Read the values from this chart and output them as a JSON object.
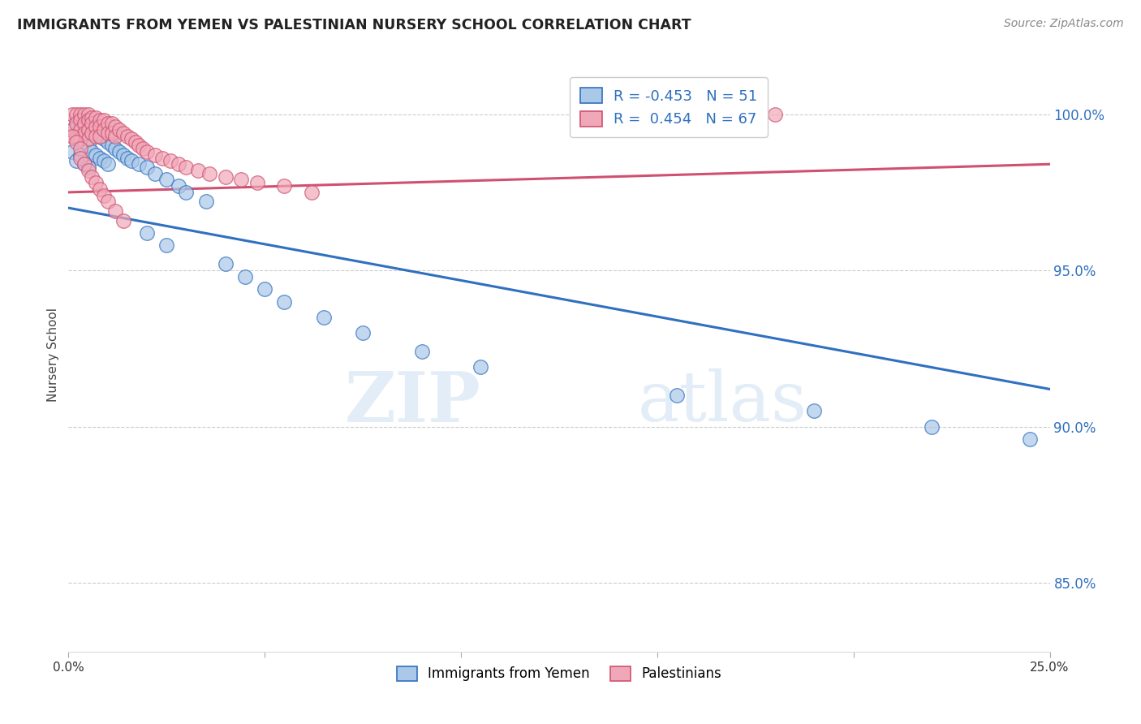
{
  "title": "IMMIGRANTS FROM YEMEN VS PALESTINIAN NURSERY SCHOOL CORRELATION CHART",
  "source": "Source: ZipAtlas.com",
  "ylabel": "Nursery School",
  "ytick_labels": [
    "85.0%",
    "90.0%",
    "95.0%",
    "100.0%"
  ],
  "ytick_values": [
    0.85,
    0.9,
    0.95,
    1.0
  ],
  "xmin": 0.0,
  "xmax": 0.25,
  "ymin": 0.828,
  "ymax": 1.018,
  "legend_blue_r": "-0.453",
  "legend_blue_n": "51",
  "legend_pink_r": "0.454",
  "legend_pink_n": "67",
  "blue_color": "#aac8e8",
  "pink_color": "#f0a8b8",
  "blue_line_color": "#3070c0",
  "pink_line_color": "#d05070",
  "watermark_zip": "ZIP",
  "watermark_atlas": "atlas",
  "blue_line_x0": 0.0,
  "blue_line_x1": 0.25,
  "blue_line_y0": 0.97,
  "blue_line_y1": 0.912,
  "pink_line_x0": 0.0,
  "pink_line_x1": 0.25,
  "pink_line_y0": 0.975,
  "pink_line_y1": 0.984,
  "blue_scatter_x": [
    0.001,
    0.001,
    0.002,
    0.002,
    0.002,
    0.003,
    0.003,
    0.003,
    0.004,
    0.004,
    0.004,
    0.005,
    0.005,
    0.005,
    0.006,
    0.006,
    0.007,
    0.007,
    0.008,
    0.008,
    0.009,
    0.009,
    0.01,
    0.01,
    0.011,
    0.012,
    0.013,
    0.014,
    0.015,
    0.016,
    0.018,
    0.02,
    0.022,
    0.025,
    0.028,
    0.03,
    0.035,
    0.02,
    0.025,
    0.04,
    0.045,
    0.05,
    0.055,
    0.065,
    0.075,
    0.09,
    0.105,
    0.155,
    0.19,
    0.22,
    0.245
  ],
  "blue_scatter_y": [
    0.995,
    0.988,
    0.998,
    0.992,
    0.985,
    0.999,
    0.994,
    0.987,
    0.997,
    0.991,
    0.984,
    0.996,
    0.99,
    0.983,
    0.995,
    0.988,
    0.994,
    0.987,
    0.993,
    0.986,
    0.992,
    0.985,
    0.991,
    0.984,
    0.99,
    0.989,
    0.988,
    0.987,
    0.986,
    0.985,
    0.984,
    0.983,
    0.981,
    0.979,
    0.977,
    0.975,
    0.972,
    0.962,
    0.958,
    0.952,
    0.948,
    0.944,
    0.94,
    0.935,
    0.93,
    0.924,
    0.919,
    0.91,
    0.905,
    0.9,
    0.896
  ],
  "pink_scatter_x": [
    0.001,
    0.001,
    0.002,
    0.002,
    0.002,
    0.003,
    0.003,
    0.003,
    0.003,
    0.004,
    0.004,
    0.004,
    0.005,
    0.005,
    0.005,
    0.005,
    0.006,
    0.006,
    0.006,
    0.007,
    0.007,
    0.007,
    0.008,
    0.008,
    0.008,
    0.009,
    0.009,
    0.01,
    0.01,
    0.011,
    0.011,
    0.012,
    0.012,
    0.013,
    0.014,
    0.015,
    0.016,
    0.017,
    0.018,
    0.019,
    0.02,
    0.022,
    0.024,
    0.026,
    0.028,
    0.03,
    0.033,
    0.036,
    0.04,
    0.044,
    0.048,
    0.055,
    0.062,
    0.001,
    0.002,
    0.003,
    0.003,
    0.004,
    0.005,
    0.006,
    0.007,
    0.008,
    0.009,
    0.01,
    0.012,
    0.014,
    0.18
  ],
  "pink_scatter_y": [
    1.0,
    0.995,
    1.0,
    0.997,
    0.993,
    1.0,
    0.998,
    0.995,
    0.992,
    1.0,
    0.997,
    0.994,
    1.0,
    0.998,
    0.995,
    0.992,
    0.999,
    0.997,
    0.994,
    0.999,
    0.996,
    0.993,
    0.998,
    0.996,
    0.993,
    0.998,
    0.995,
    0.997,
    0.994,
    0.997,
    0.994,
    0.996,
    0.993,
    0.995,
    0.994,
    0.993,
    0.992,
    0.991,
    0.99,
    0.989,
    0.988,
    0.987,
    0.986,
    0.985,
    0.984,
    0.983,
    0.982,
    0.981,
    0.98,
    0.979,
    0.978,
    0.977,
    0.975,
    0.993,
    0.991,
    0.989,
    0.986,
    0.984,
    0.982,
    0.98,
    0.978,
    0.976,
    0.974,
    0.972,
    0.969,
    0.966,
    1.0
  ]
}
